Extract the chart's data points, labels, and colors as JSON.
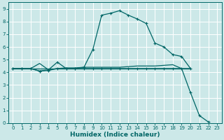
{
  "xlabel": "Humidex (Indice chaleur)",
  "background_color": "#cce8e8",
  "grid_color": "#ffffff",
  "line_color": "#006666",
  "xlim": [
    -0.5,
    23.5
  ],
  "ylim": [
    0,
    9.5
  ],
  "xticks": [
    0,
    1,
    2,
    3,
    4,
    5,
    6,
    7,
    8,
    9,
    10,
    11,
    12,
    13,
    14,
    15,
    16,
    17,
    18,
    19,
    20,
    21,
    22,
    23
  ],
  "yticks": [
    0,
    1,
    2,
    3,
    4,
    5,
    6,
    7,
    8,
    9
  ],
  "line_arch": {
    "x": [
      0,
      1,
      2,
      3,
      4,
      5,
      6,
      7,
      8,
      9,
      10,
      11,
      12,
      13,
      14,
      15,
      16,
      17,
      18,
      19,
      20
    ],
    "y": [
      4.3,
      4.3,
      4.3,
      4.1,
      4.2,
      4.8,
      4.3,
      4.3,
      4.4,
      5.8,
      8.5,
      8.65,
      8.85,
      8.5,
      8.2,
      7.85,
      6.3,
      6.0,
      5.4,
      5.25,
      4.3
    ]
  },
  "line_diagonal": {
    "x": [
      0,
      1,
      2,
      3,
      4,
      5,
      6,
      7,
      8,
      9,
      10,
      11,
      12,
      13,
      14,
      15,
      16,
      17,
      18,
      19,
      20,
      21,
      22
    ],
    "y": [
      4.3,
      4.3,
      4.3,
      4.1,
      4.15,
      4.3,
      4.3,
      4.3,
      4.3,
      4.3,
      4.3,
      4.3,
      4.3,
      4.3,
      4.3,
      4.3,
      4.3,
      4.3,
      4.3,
      4.3,
      2.4,
      0.6,
      0.1
    ]
  },
  "line_flat1": {
    "x": [
      0,
      1,
      2,
      3,
      4,
      5,
      6,
      7,
      8,
      9,
      10,
      11,
      12,
      13,
      14,
      15,
      16,
      17,
      18,
      19,
      20
    ],
    "y": [
      4.3,
      4.3,
      4.3,
      4.7,
      4.2,
      4.3,
      4.35,
      4.35,
      4.4,
      4.4,
      4.4,
      4.4,
      4.4,
      4.45,
      4.5,
      4.5,
      4.5,
      4.55,
      4.6,
      4.3,
      4.3
    ]
  },
  "line_flat2": {
    "x": [
      0,
      20
    ],
    "y": [
      4.3,
      4.3
    ]
  }
}
